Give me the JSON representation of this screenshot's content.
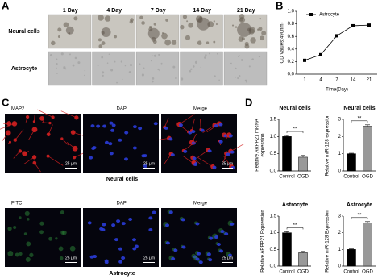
{
  "panels": {
    "A": {
      "label": "A",
      "columns": [
        "1 Day",
        "4 Day",
        "7 Day",
        "14 Day",
        "21 Day"
      ],
      "rows": [
        "Neural cells",
        "Astrocyte"
      ]
    },
    "B": {
      "label": "B"
    },
    "C": {
      "label": "C",
      "scale_bar": "25 μm",
      "rows": [
        {
          "name": "Neural cells",
          "channels": [
            "MAP2",
            "DAPI",
            "Merge"
          ]
        },
        {
          "name": "Astrocyte",
          "channels": [
            "FITC",
            "DAPI",
            "Merge"
          ]
        }
      ]
    },
    "D": {
      "label": "D"
    }
  },
  "chart_data": [
    {
      "type": "line",
      "categories": [
        "1",
        "4",
        "7",
        "14",
        "21"
      ],
      "xlabel": "Time(Day)",
      "ylabel": [
        "OD Values(490nm)"
      ],
      "series": [
        {
          "name": "Astrocyte",
          "color": "#000000",
          "values": [
            0.22,
            0.31,
            0.61,
            0.77,
            0.78
          ]
        }
      ],
      "ylim": [
        0,
        1.0
      ],
      "yticks": [
        {
          "value": 0,
          "label": "0.0"
        },
        0.2,
        0.4,
        0.6,
        0.8,
        {
          "value": 1.0,
          "label": "1.0"
        }
      ]
    },
    {
      "type": "bar",
      "title": "Neural cells",
      "categories": [
        "Control",
        "OGD"
      ],
      "ylabel": [
        "Relative ARPP21 mRNA",
        "expression"
      ],
      "values": [
        1.0,
        0.4
      ],
      "errors": [
        0.03,
        0.05
      ],
      "colors": [
        "#000000",
        "#999999"
      ],
      "significance": "**",
      "ylim": [
        0,
        1.5
      ],
      "yticks": [
        {
          "value": 0,
          "label": "0.0"
        },
        0.5,
        {
          "value": 1.0,
          "label": "1.0"
        },
        1.5
      ]
    },
    {
      "type": "bar",
      "title": "Neural cells",
      "categories": [
        "Control",
        "OGD"
      ],
      "ylabel": [
        "Relative miR-128 expression"
      ],
      "values": [
        1.0,
        2.6
      ],
      "errors": [
        0.03,
        0.08
      ],
      "colors": [
        "#000000",
        "#999999"
      ],
      "significance": "**",
      "ylim": [
        0,
        3
      ],
      "yticks": [
        0,
        1,
        2,
        3
      ]
    },
    {
      "type": "bar",
      "title": "Astrocyte",
      "categories": [
        "Control",
        "OGD"
      ],
      "ylabel": [
        "Relative ARPP21 Expression"
      ],
      "values": [
        1.0,
        0.4
      ],
      "errors": [
        0.03,
        0.04
      ],
      "colors": [
        "#000000",
        "#999999"
      ],
      "significance": "**",
      "ylim": [
        0,
        1.5
      ],
      "yticks": [
        {
          "value": 0,
          "label": "0.0"
        },
        0.5,
        {
          "value": 1.0,
          "label": "1.0"
        },
        1.5
      ]
    },
    {
      "type": "bar",
      "title": "Astrocyte",
      "categories": [
        "Control",
        "OGD"
      ],
      "ylabel": [
        "Relative miR-128 Expression"
      ],
      "values": [
        1.0,
        2.6
      ],
      "errors": [
        0.03,
        0.07
      ],
      "colors": [
        "#000000",
        "#999999"
      ],
      "significance": "**",
      "ylim": [
        0,
        3
      ],
      "yticks": [
        0,
        1,
        2,
        3
      ]
    }
  ]
}
